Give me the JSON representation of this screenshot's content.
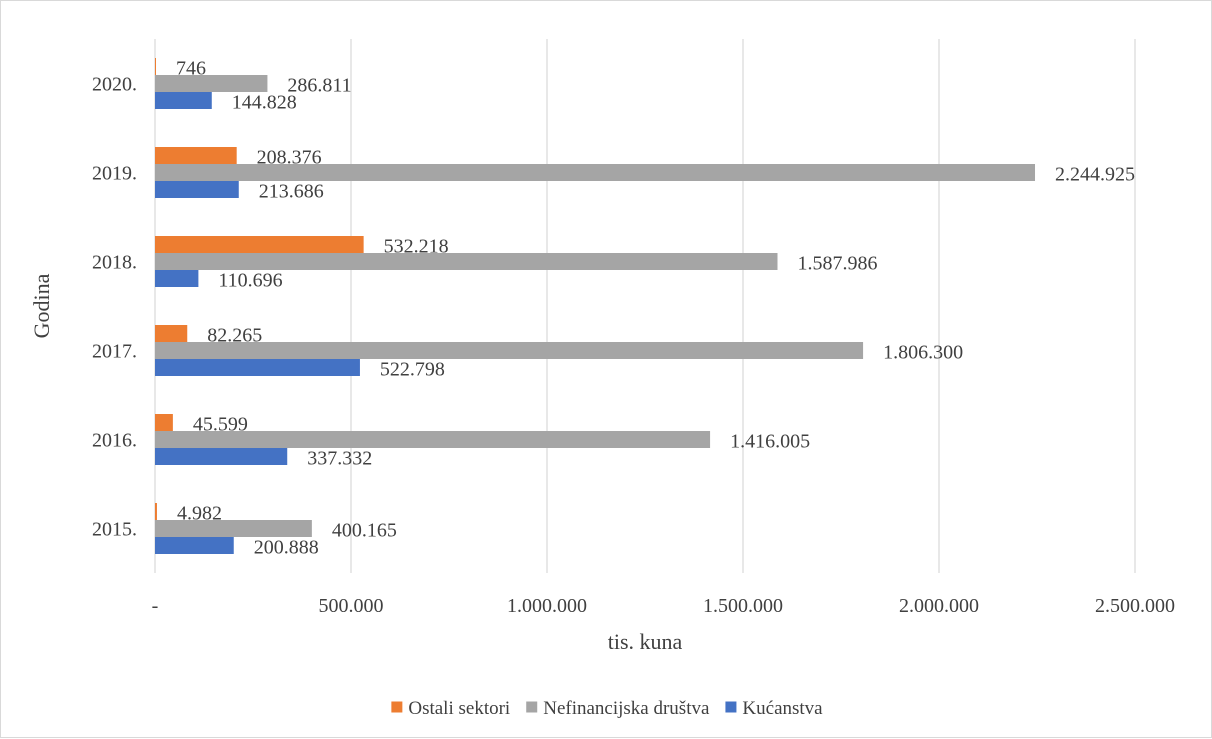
{
  "chart_data": {
    "type": "bar",
    "orientation": "horizontal",
    "categories": [
      "2015.",
      "2016.",
      "2017.",
      "2018.",
      "2019.",
      "2020."
    ],
    "series": [
      {
        "name": "Ostali sektori",
        "color": "#ed7d31",
        "values": [
          4982,
          45599,
          82265,
          532218,
          208376,
          746
        ],
        "labels": [
          "4.982",
          "45.599",
          "82.265",
          "532.218",
          "208.376",
          "746"
        ]
      },
      {
        "name": "Nefinancijska društva",
        "color": "#a5a5a5",
        "values": [
          400165,
          1416005,
          1806300,
          1587986,
          2244925,
          286811
        ],
        "labels": [
          "400.165",
          "1.416.005",
          "1.806.300",
          "1.587.986",
          "2.244.925",
          "286.811"
        ]
      },
      {
        "name": "Kućanstva",
        "color": "#4472c4",
        "values": [
          200888,
          337332,
          522798,
          110696,
          213686,
          144828
        ],
        "labels": [
          "200.888",
          "337.332",
          "522.798",
          "110.696",
          "213.686",
          "144.828"
        ]
      }
    ],
    "xaxis": {
      "label": "tis. kuna",
      "range": [
        0,
        2500000
      ],
      "ticks": [
        0,
        500000,
        1000000,
        1500000,
        2000000,
        2500000
      ],
      "tick_labels": [
        "-",
        "500.000",
        "1.000.000",
        "1.500.000",
        "2.000.000",
        "2.500.000"
      ]
    },
    "yaxis": {
      "label": "Godina"
    },
    "grid": "vertical",
    "legend": "bottom",
    "legend_items": [
      {
        "name": "Ostali sektori",
        "color": "#ed7d31"
      },
      {
        "name": "Nefinancijska društva",
        "color": "#a5a5a5"
      },
      {
        "name": "Kućanstva",
        "color": "#4472c4"
      }
    ]
  }
}
